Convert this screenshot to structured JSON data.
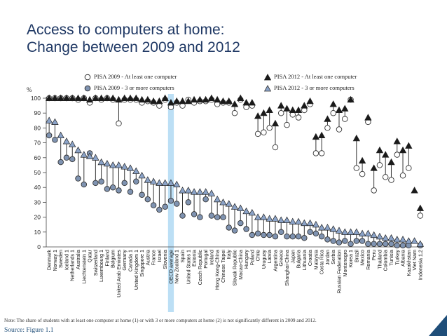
{
  "title_line1": "Access to computers at home:",
  "title_line2": "Change between 2009 and 2012",
  "note": "Note: The share of students with at least one computer at home (1) or with 3 or more computers at home (2) is not significantly different in 2009 and 2012.",
  "source": "Source: Figure 1.1",
  "colors": {
    "circle_2009_one": "#ffffff",
    "circle_2009_three": "#7f93b1",
    "triangle_2012_one": "#1a1a1a",
    "triangle_2012_three": "#8ba3c8",
    "highlight": "#bcdff5",
    "title": "#1f3864",
    "accent_corner": "#1f4e79"
  },
  "chart_data": {
    "type": "scatter",
    "ylabel": "%",
    "ylim": [
      0,
      100
    ],
    "yticks": [
      0,
      10,
      20,
      30,
      40,
      50,
      60,
      70,
      80,
      90,
      100
    ],
    "highlight_category": "OECD average",
    "legend": [
      {
        "key": "pisa2009_one",
        "label": "PISA 2009 - At least one computer",
        "marker": "circle-open"
      },
      {
        "key": "pisa2012_one",
        "label": "PISA 2012 - At least one computer",
        "marker": "triangle-dark"
      },
      {
        "key": "pisa2009_three",
        "label": "PISA 2009 - 3 or more computers",
        "marker": "circle-filled"
      },
      {
        "key": "pisa2012_three",
        "label": "PISA 2012 - 3 or more computers",
        "marker": "triangle-light"
      }
    ],
    "categories": [
      "Denmark",
      "Norway 1",
      "Sweden",
      "Iceland 1",
      "Netherlands 1",
      "Australia",
      "Liechtenstein 1",
      "Qatar",
      "Switzerland",
      "Luxembourg 1",
      "Finland",
      "Belgium",
      "United Arab Emirates",
      "Germany",
      "Canada 1",
      "United Kingdom 1",
      "Singapore 1",
      "Austria",
      "France",
      "Israel",
      "Slovenia",
      "OECD average",
      "New Zealand 1",
      "Spain",
      "United States 1",
      "Estonia",
      "Czech Republic",
      "Portugal",
      "Ireland",
      "Hong Kong-China",
      "Chinese Taipei",
      "Italy",
      "Slovak Republic",
      "Macao-China",
      "Hungary",
      "Poland",
      "Chile",
      "Uruguay",
      "Latvia",
      "Argentina",
      "Greece",
      "Shanghai-China",
      "Japan",
      "Bulgaria",
      "Lithuania",
      "Croatia",
      "Malaysia",
      "Costa Rica",
      "Jordan",
      "Serbia",
      "Russian Federation",
      "Montenegro",
      "Korea 1",
      "Brazil",
      "Mexico",
      "Romania",
      "Peru",
      "Thailand",
      "Colombia",
      "Tunisia",
      "Turkey",
      "Albania",
      "Kazakhstan",
      "Viet Nam",
      "Indonesia 1,2"
    ],
    "series": [
      {
        "name": "PISA 2009 - At least one computer",
        "key": "pisa2009_one",
        "values": [
          100,
          100,
          100,
          100,
          100,
          99,
          100,
          97,
          100,
          99,
          100,
          99,
          83,
          99,
          99,
          99,
          97,
          98,
          97,
          95,
          99,
          94,
          97,
          95,
          99,
          97,
          98,
          98,
          99,
          96,
          97,
          97,
          90,
          99,
          94,
          95,
          76,
          77,
          80,
          67,
          90,
          82,
          89,
          87,
          92,
          96,
          63,
          63,
          80,
          90,
          79,
          86,
          99,
          53,
          49,
          84,
          38,
          55,
          47,
          45,
          62,
          48,
          53,
          null,
          21
        ]
      },
      {
        "name": "PISA 2009 - 3 or more computers",
        "key": "pisa2009_three",
        "values": [
          75,
          72,
          57,
          60,
          59,
          46,
          42,
          63,
          43,
          44,
          39,
          40,
          38,
          43,
          37,
          44,
          35,
          32,
          28,
          25,
          27,
          31,
          29,
          21,
          30,
          22,
          20,
          32,
          21,
          20,
          20,
          13,
          11,
          16,
          12,
          8,
          9,
          8,
          8,
          7,
          10,
          7,
          7,
          7,
          6,
          10,
          9,
          7,
          5,
          4,
          3,
          4,
          2,
          4,
          4,
          2,
          2,
          2,
          2,
          2,
          1,
          1,
          1,
          null,
          1
        ]
      },
      {
        "name": "PISA 2012 - At least one computer",
        "key": "pisa2012_one",
        "values": [
          100,
          100,
          100,
          100,
          100,
          100,
          100,
          99,
          100,
          100,
          100,
          100,
          99,
          100,
          100,
          100,
          99,
          99,
          98,
          98,
          100,
          97,
          98,
          98,
          98,
          99,
          99,
          99,
          100,
          99,
          98,
          98,
          96,
          100,
          97,
          97,
          88,
          90,
          92,
          83,
          95,
          93,
          92,
          92,
          95,
          98,
          74,
          75,
          86,
          96,
          92,
          93,
          99,
          73,
          58,
          87,
          53,
          65,
          62,
          57,
          71,
          65,
          68,
          38,
          26
        ]
      },
      {
        "name": "PISA 2012 - 3 or more computers",
        "key": "pisa2012_three",
        "values": [
          85,
          84,
          75,
          71,
          69,
          65,
          62,
          61,
          60,
          57,
          56,
          55,
          55,
          54,
          53,
          51,
          48,
          45,
          44,
          43,
          43,
          43,
          42,
          38,
          38,
          37,
          37,
          37,
          36,
          32,
          30,
          29,
          27,
          26,
          24,
          23,
          20,
          20,
          19,
          19,
          18,
          18,
          17,
          17,
          16,
          16,
          15,
          13,
          13,
          12,
          11,
          10,
          10,
          10,
          9,
          9,
          8,
          7,
          6,
          6,
          5,
          5,
          4,
          4,
          2
        ]
      }
    ]
  }
}
